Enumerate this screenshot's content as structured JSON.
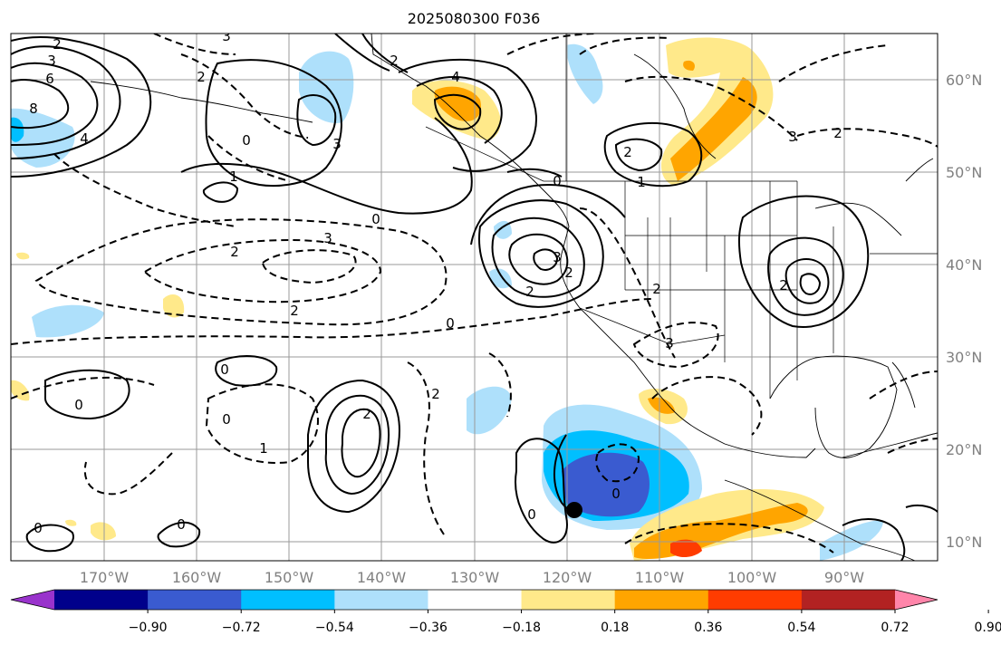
{
  "title": "2025080300 F036",
  "lon_labels": [
    "170°W",
    "160°W",
    "150°W",
    "140°W",
    "130°W",
    "120°W",
    "110°W",
    "100°W",
    "90°W"
  ],
  "lat_labels": [
    "60°N",
    "50°N",
    "40°N",
    "30°N",
    "20°N",
    "10°N"
  ],
  "colorbar": {
    "ticks": [
      "−0.90",
      "−0.72",
      "−0.54",
      "−0.36",
      "−0.18",
      "0.18",
      "0.36",
      "0.54",
      "0.72",
      "0.90"
    ],
    "colors": [
      "#9933cc",
      "#00008b",
      "#3a5bd0",
      "#00bfff",
      "#aee0fb",
      "#ffffff",
      "#ffe98a",
      "#ffa500",
      "#ff3c00",
      "#b22222",
      "#ff85aa"
    ]
  },
  "contour_labels": {
    "pos": [
      "6",
      "8",
      "4",
      "3",
      "3",
      "1",
      "1",
      "2",
      "3",
      "2",
      "2",
      "3",
      "2",
      "4",
      "2",
      "2",
      "0",
      "0",
      "0",
      "0",
      "0",
      "0",
      "0",
      "0"
    ],
    "neg": [
      "2",
      "0",
      "3",
      "2",
      "3",
      "2",
      "2",
      "1",
      "2",
      "0",
      "2",
      "3",
      "0",
      "2"
    ]
  },
  "storm_marker": "black-dot"
}
